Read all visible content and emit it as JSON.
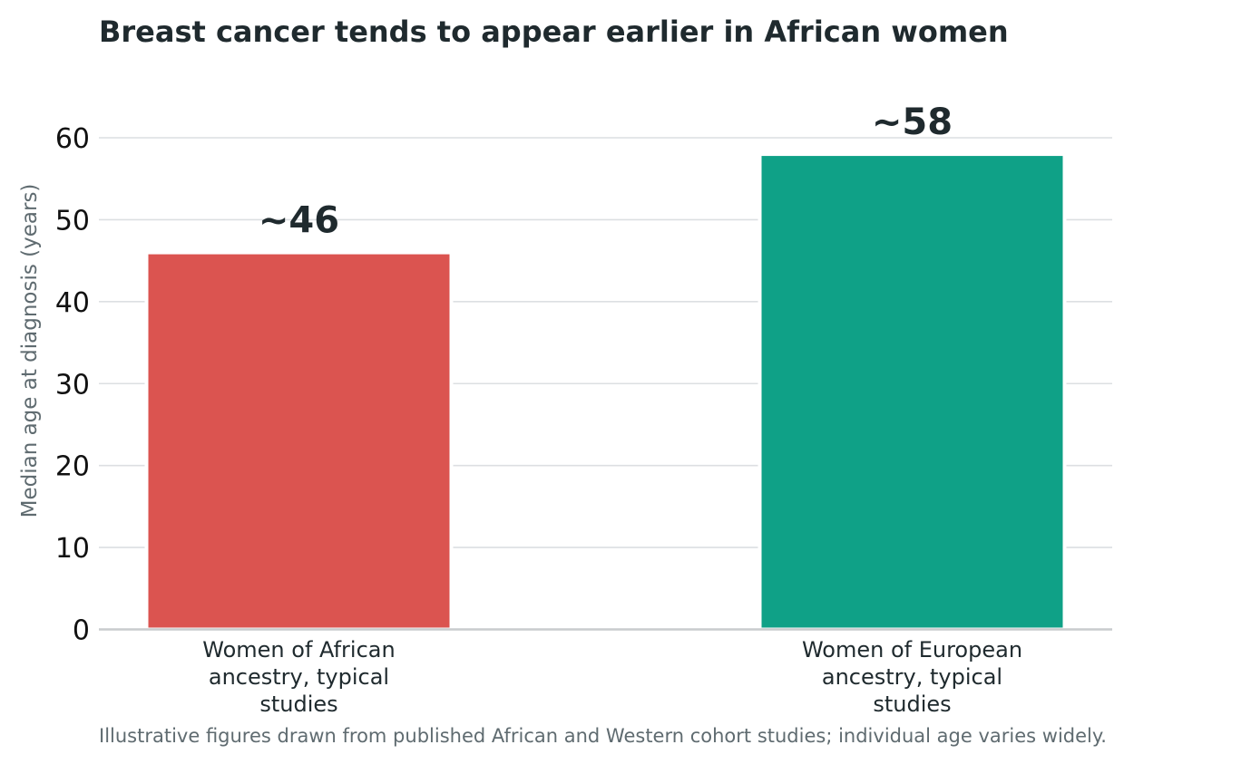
{
  "chart_data": {
    "type": "bar",
    "title": "Breast cancer tends to appear earlier in African women",
    "ylabel": "Median age at diagnosis (years)",
    "xlabel": "",
    "categories": [
      [
        "Women of African",
        "ancestry, typical",
        "studies"
      ],
      [
        "Women of European",
        "ancestry, typical",
        "studies"
      ]
    ],
    "values": [
      46,
      58
    ],
    "value_labels": [
      "~46",
      "~58"
    ],
    "colors": [
      "#db5450",
      "#0fa187"
    ],
    "ylim": [
      0,
      60
    ],
    "yticks": [
      0,
      10,
      20,
      30,
      40,
      50,
      60
    ],
    "grid": true,
    "legend": "none",
    "caption": "Illustrative figures drawn from published African and Western cohort studies; individual age varies widely."
  }
}
